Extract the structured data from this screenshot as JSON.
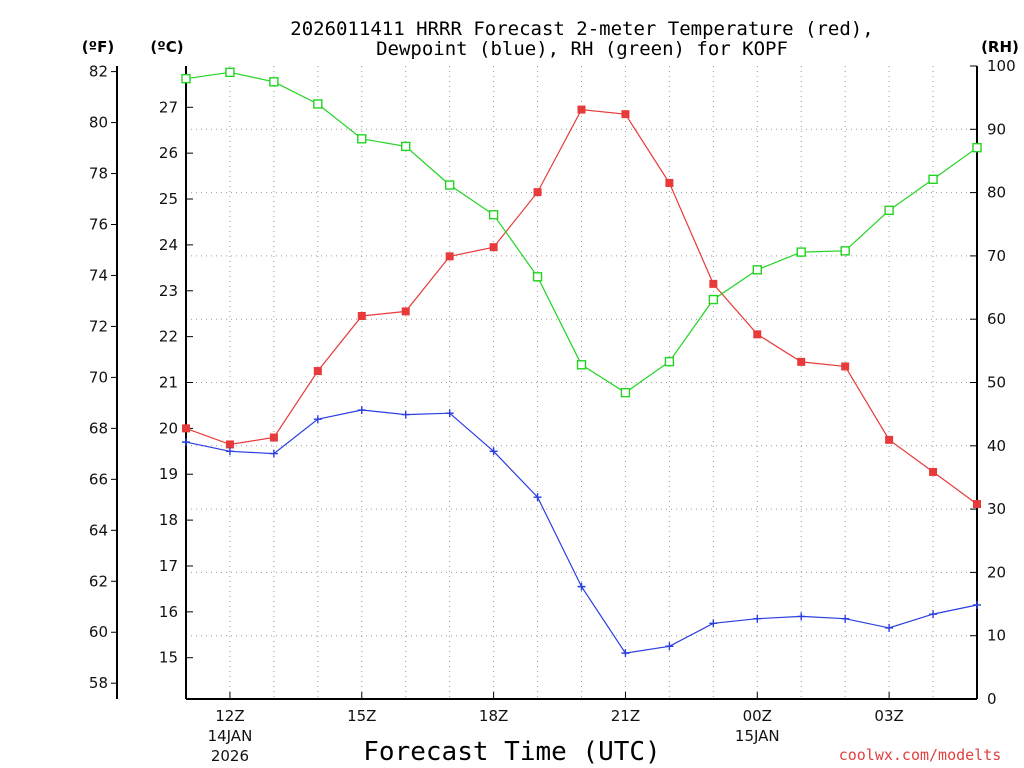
{
  "chart_data": {
    "type": "line",
    "title_line1": "2026011411 HRRR Forecast 2-meter Temperature (red),",
    "title_line2": "Dewpoint (blue), RH (green) for KOPF",
    "xlabel": "Forecast Time (UTC)",
    "credit": "coolwx.com/modelts",
    "units": {
      "fahrenheit": "(ºF)",
      "celsius": "(ºC)",
      "rh": "(RH)"
    },
    "x_hours": [
      11,
      12,
      13,
      14,
      15,
      16,
      17,
      18,
      19,
      20,
      21,
      22,
      23,
      24,
      25,
      26,
      27,
      28,
      29
    ],
    "xlim": [
      11,
      29
    ],
    "x_ticks": [
      {
        "hour": 12,
        "label": "12Z",
        "sub1": "14JAN",
        "sub2": "2026"
      },
      {
        "hour": 15,
        "label": "15Z",
        "sub1": "",
        "sub2": ""
      },
      {
        "hour": 18,
        "label": "18Z",
        "sub1": "",
        "sub2": ""
      },
      {
        "hour": 21,
        "label": "21Z",
        "sub1": "",
        "sub2": ""
      },
      {
        "hour": 24,
        "label": "00Z",
        "sub1": "15JAN",
        "sub2": ""
      },
      {
        "hour": 27,
        "label": "03Z",
        "sub1": "",
        "sub2": ""
      }
    ],
    "y_celsius_lim": [
      14.1,
      27.9
    ],
    "y_celsius_ticks": [
      "15",
      "16",
      "17",
      "18",
      "19",
      "20",
      "21",
      "22",
      "23",
      "24",
      "25",
      "26",
      "27"
    ],
    "y_fahrenheit_ticks": [
      "58",
      "60",
      "62",
      "64",
      "66",
      "68",
      "70",
      "72",
      "74",
      "76",
      "78",
      "80",
      "82"
    ],
    "y_rh_lim": [
      0,
      100
    ],
    "y_rh_ticks": [
      "0",
      "10",
      "20",
      "30",
      "40",
      "50",
      "60",
      "70",
      "80",
      "90",
      "100"
    ],
    "series": [
      {
        "name": "Temperature",
        "color": "#e83a3a",
        "marker": "filled-square",
        "axis": "celsius",
        "values": [
          20.0,
          19.65,
          19.8,
          21.25,
          22.45,
          22.55,
          23.75,
          23.95,
          25.15,
          26.95,
          26.85,
          25.35,
          23.15,
          22.05,
          21.45,
          21.35,
          19.75,
          19.05,
          18.35
        ]
      },
      {
        "name": "Dewpoint",
        "color": "#2a3ee0",
        "marker": "plus",
        "axis": "celsius",
        "values": [
          19.7,
          19.5,
          19.45,
          20.2,
          20.4,
          20.3,
          20.33,
          19.5,
          18.5,
          16.55,
          15.1,
          15.25,
          15.75,
          15.85,
          15.9,
          15.85,
          15.65,
          15.95,
          16.15
        ]
      },
      {
        "name": "RH",
        "color": "#22d422",
        "marker": "open-square",
        "axis": "rh",
        "values": [
          98,
          99,
          97.5,
          94,
          88.5,
          87.3,
          81.2,
          76.5,
          66.7,
          52.8,
          48.4,
          53.3,
          63.1,
          67.8,
          70.6,
          70.8,
          77.2,
          82.1,
          87.1
        ]
      }
    ]
  }
}
